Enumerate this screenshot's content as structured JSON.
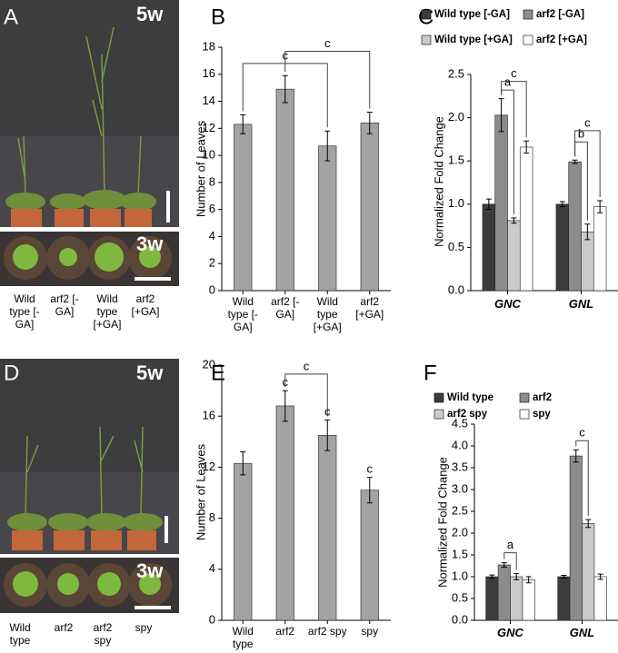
{
  "panel_labels": [
    "A",
    "B",
    "C",
    "D",
    "E",
    "F"
  ],
  "photos": [
    {
      "age_labels": [
        "5w",
        "3w"
      ],
      "labels": [
        "Wild type [-GA]",
        "arf2 [-GA]",
        "Wild type [+GA]",
        "arf2 [+GA]"
      ]
    },
    {
      "age_labels": [
        "5w",
        "3w"
      ],
      "labels": [
        "Wild type",
        "arf2",
        "arf2 spy",
        "spy"
      ]
    }
  ],
  "chart_data": [
    {
      "type": "bar",
      "ylabel": "Number of Leaves",
      "categories": [
        "Wild type [-GA]",
        "arf2 [-GA]",
        "Wild type [+GA]",
        "arf2 [+GA]"
      ],
      "values": [
        12.3,
        14.9,
        10.7,
        12.4
      ],
      "errors": [
        0.7,
        1.0,
        1.1,
        0.8
      ],
      "color": "#a3a3a3",
      "ylim": [
        0,
        18
      ],
      "yticks": [
        0,
        2,
        4,
        6,
        8,
        10,
        12,
        14,
        16,
        18
      ],
      "annotations": [
        "c",
        "c"
      ]
    },
    {
      "type": "bar",
      "ylabel": "Normalized Fold Change",
      "categories": [
        "GNC",
        "GNL"
      ],
      "series": [
        {
          "name": "Wild type [-GA]",
          "color": "#3c3c3c",
          "values": [
            1.0,
            1.0
          ],
          "errors": [
            0.06,
            0.03
          ]
        },
        {
          "name": "arf2 [-GA]",
          "color": "#8c8c8c",
          "values": [
            2.03,
            1.49
          ],
          "errors": [
            0.19,
            0.02
          ]
        },
        {
          "name": "Wild type [+GA]",
          "color": "#cacaca",
          "values": [
            0.81,
            0.68
          ],
          "errors": [
            0.03,
            0.09
          ]
        },
        {
          "name": "arf2 [+GA]",
          "color": "#ffffff",
          "values": [
            1.66,
            0.97
          ],
          "errors": [
            0.07,
            0.07
          ]
        }
      ],
      "ylim": [
        0,
        2.5
      ],
      "yticks": [
        {
          "value": 0,
          "label": "0.0"
        },
        0.5,
        {
          "value": 1,
          "label": "1.0"
        },
        1.5,
        {
          "value": 2,
          "label": "2.0"
        },
        2.5
      ],
      "annotations": [
        "a",
        "c",
        "b",
        "c"
      ]
    },
    {
      "type": "bar",
      "ylabel": "Number of Leaves",
      "categories": [
        "Wild type",
        "arf2",
        "arf2 spy",
        "spy"
      ],
      "values": [
        12.3,
        16.8,
        14.5,
        10.2
      ],
      "errors": [
        0.9,
        1.2,
        1.2,
        1.0
      ],
      "color": "#a3a3a3",
      "ylim": [
        0,
        20
      ],
      "yticks": [
        0,
        4,
        8,
        12,
        16,
        20
      ],
      "annotations": [
        "c",
        "c",
        "c",
        "c"
      ]
    },
    {
      "type": "bar",
      "ylabel": "Normalized Fold Change",
      "categories": [
        "GNC",
        "GNL"
      ],
      "series": [
        {
          "name": "Wild type",
          "color": "#3c3c3c",
          "values": [
            1.0,
            1.0
          ],
          "errors": [
            0.04,
            0.03
          ]
        },
        {
          "name": "arf2",
          "color": "#8c8c8c",
          "values": [
            1.27,
            3.77
          ],
          "errors": [
            0.05,
            0.14
          ]
        },
        {
          "name": "arf2 spy",
          "color": "#cacaca",
          "values": [
            1.0,
            2.22
          ],
          "errors": [
            0.07,
            0.09
          ]
        },
        {
          "name": "spy",
          "color": "#ffffff",
          "values": [
            0.93,
            1.0
          ],
          "errors": [
            0.07,
            0.06
          ]
        }
      ],
      "ylim": [
        0,
        4.5
      ],
      "yticks": [
        {
          "value": 0,
          "label": "0.0"
        },
        0.5,
        {
          "value": 1,
          "label": "1.0"
        },
        1.5,
        {
          "value": 2,
          "label": "2.0"
        },
        2.5,
        {
          "value": 3,
          "label": "3.0"
        },
        3.5,
        {
          "value": 4,
          "label": "4.0"
        },
        4.5
      ],
      "annotations": [
        "a",
        "c"
      ]
    }
  ]
}
